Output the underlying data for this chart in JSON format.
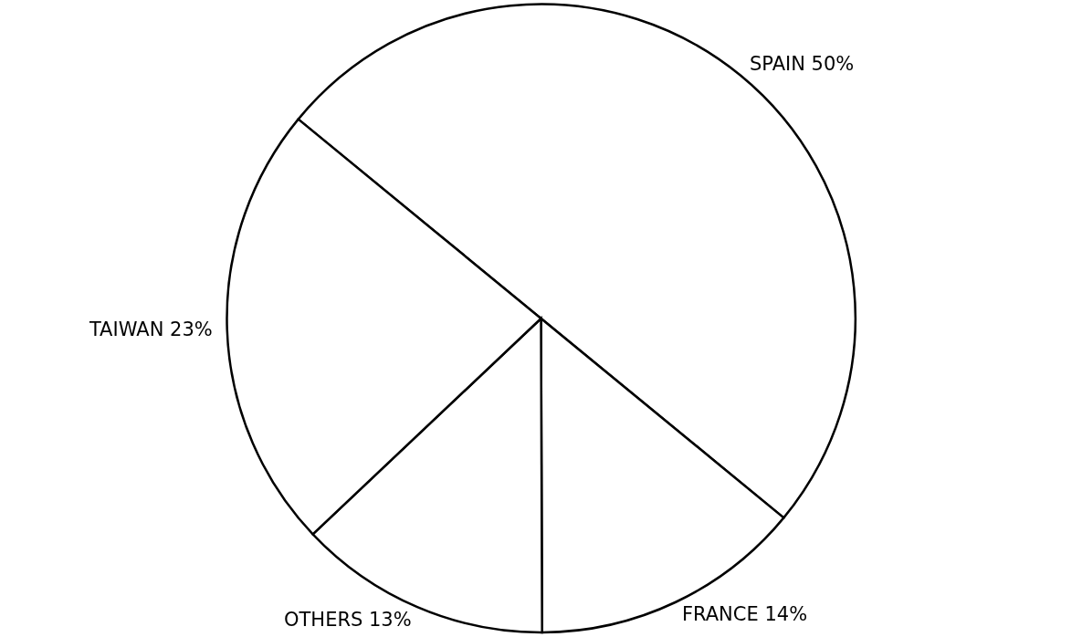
{
  "chart_data": {
    "type": "pie",
    "categories": [
      "SPAIN",
      "FRANCE",
      "OTHERS",
      "TAIWAN"
    ],
    "values": [
      50,
      14,
      13,
      23
    ],
    "value_labels": [
      "50%",
      "14%",
      "13%",
      "23%"
    ],
    "colors": [
      "#ffffff",
      "#ffffff",
      "#ffffff",
      "#ffffff"
    ],
    "legend": false
  }
}
